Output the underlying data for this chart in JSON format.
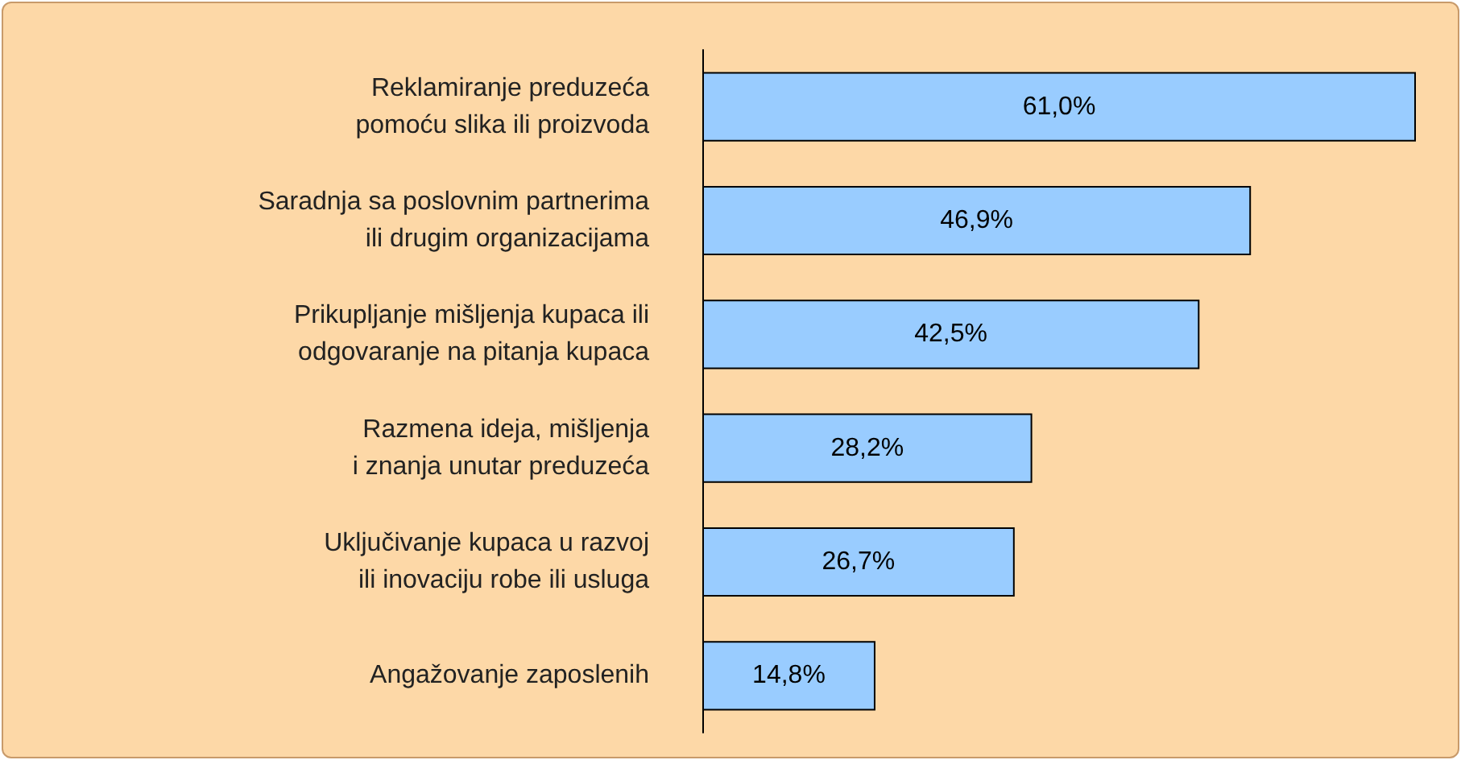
{
  "chart_data": {
    "type": "bar",
    "orientation": "horizontal",
    "categories": [
      "Reklamiranje preduzeća\npomoću slika ili proizvoda",
      "Saradnja sa poslovnim partnerima\nili drugim organizacijama",
      "Prikupljanje mišljenja kupaca ili\nodgovaranje na pitanja kupaca",
      "Razmena ideja, mišljenja\ni znanja unutar preduzeća",
      "Uključivanje kupaca u razvoj\nili inovaciju robe ili usluga",
      "Angažovanje zaposlenih"
    ],
    "values": [
      61.0,
      46.9,
      42.5,
      28.2,
      26.7,
      14.8
    ],
    "value_labels": [
      "61,0%",
      "46,9%",
      "42,5%",
      "28,2%",
      "26,7%",
      "14,8%"
    ],
    "color": "#99ccff"
  }
}
